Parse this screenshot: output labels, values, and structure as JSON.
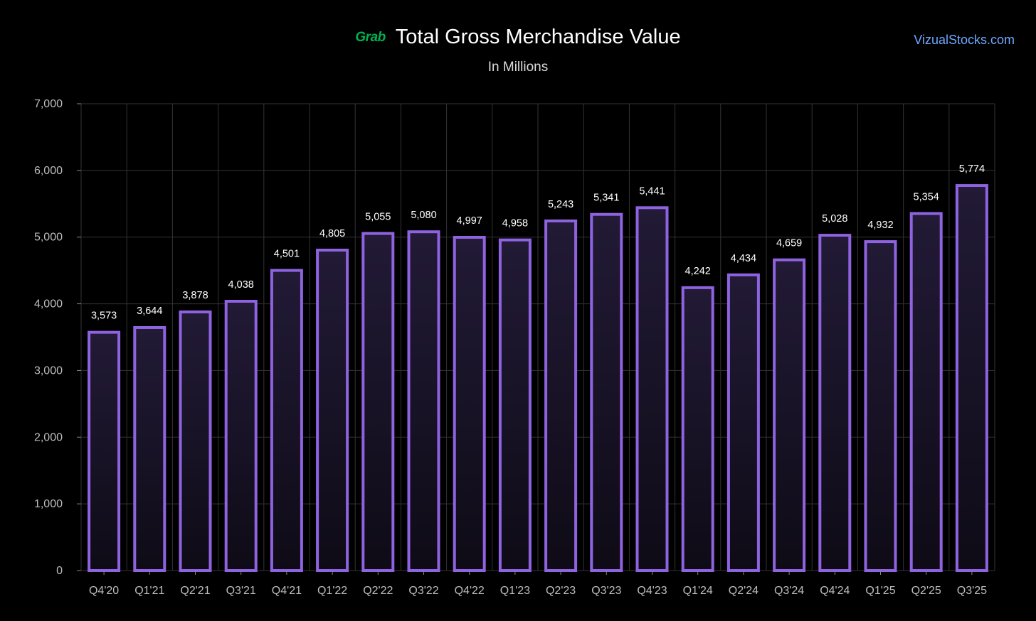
{
  "header": {
    "logo_text": "Grab",
    "title": "Total Gross Merchandise Value",
    "subtitle": "In Millions",
    "watermark": "VizualStocks.com"
  },
  "colors": {
    "bar_stroke": "#8f63e0",
    "bar_fill_top": "#221a36",
    "bar_fill_bottom": "#0e0b16",
    "grid": "#333333",
    "logo": "#00b14f",
    "watermark": "#6ea8fe"
  },
  "chart_data": {
    "type": "bar",
    "title": "Total Gross Merchandise Value",
    "subtitle": "In Millions",
    "xlabel": "",
    "ylabel": "",
    "ylim": [
      0,
      7000
    ],
    "yticks": [
      0,
      1000,
      2000,
      3000,
      4000,
      5000,
      6000,
      7000
    ],
    "ytick_labels": [
      "0",
      "1,000",
      "2,000",
      "3,000",
      "4,000",
      "5,000",
      "6,000",
      "7,000"
    ],
    "grid": true,
    "categories": [
      "Q4'20",
      "Q1'21",
      "Q2'21",
      "Q3'21",
      "Q4'21",
      "Q1'22",
      "Q2'22",
      "Q3'22",
      "Q4'22",
      "Q1'23",
      "Q2'23",
      "Q3'23",
      "Q4'23",
      "Q1'24",
      "Q2'24",
      "Q3'24",
      "Q4'24",
      "Q1'25",
      "Q2'25",
      "Q3'25"
    ],
    "values": [
      3573,
      3644,
      3878,
      4038,
      4501,
      4805,
      5055,
      5080,
      4997,
      4958,
      5243,
      5341,
      5441,
      4242,
      4434,
      4659,
      5028,
      4932,
      5354,
      5774
    ],
    "value_labels": [
      "3,573",
      "3,644",
      "3,878",
      "4,038",
      "4,501",
      "4,805",
      "5,055",
      "5,080",
      "4,997",
      "4,958",
      "5,243",
      "5,341",
      "5,441",
      "4,242",
      "4,434",
      "4,659",
      "5,028",
      "4,932",
      "5,354",
      "5,774"
    ]
  }
}
